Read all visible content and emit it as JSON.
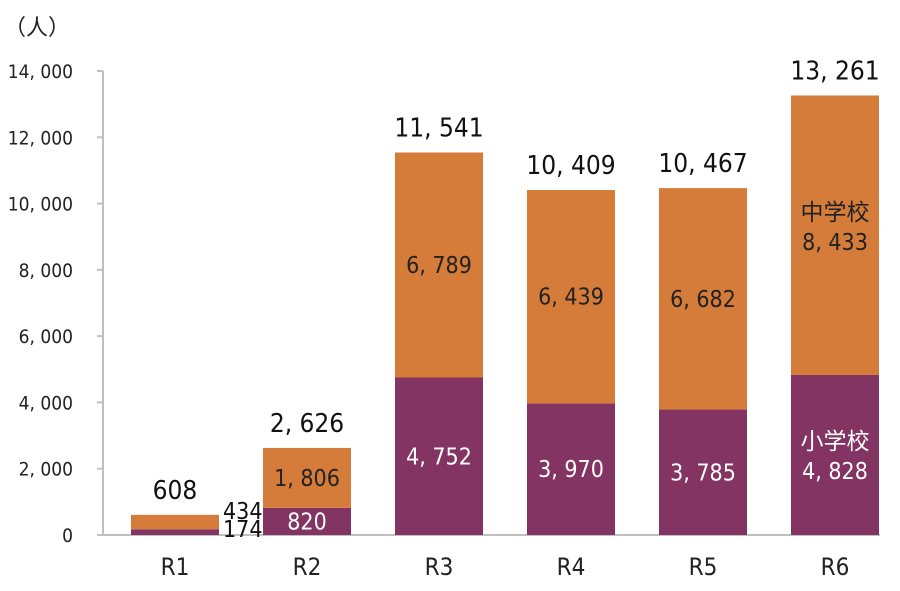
{
  "chart_data": {
    "type": "stacked-bar",
    "unit_label": "（人）",
    "categories": [
      "R1",
      "R2",
      "R3",
      "R4",
      "R5",
      "R6"
    ],
    "series": [
      {
        "name": "小学校",
        "color": "#833462",
        "values": [
          174,
          820,
          4752,
          3970,
          3785,
          4828
        ],
        "labels": [
          "174",
          "820",
          "4, 752",
          "3, 970",
          "3, 785",
          "4, 828"
        ]
      },
      {
        "name": "中学校",
        "color": "#d57c3a",
        "values": [
          434,
          1806,
          6789,
          6439,
          6682,
          8433
        ],
        "labels": [
          "434",
          "1, 806",
          "6, 789",
          "6, 439",
          "6, 682",
          "8, 433"
        ]
      }
    ],
    "totals": [
      608,
      2626,
      11541,
      10409,
      10467,
      13261
    ],
    "total_labels": [
      "608",
      "2, 626",
      "11, 541",
      "10, 409",
      "10, 467",
      "13, 261"
    ],
    "series_labels_in_last_bar": [
      "小学校",
      "中学校"
    ],
    "y_ticks": [
      0,
      2000,
      4000,
      6000,
      8000,
      10000,
      12000,
      14000
    ],
    "y_tick_labels": [
      "0",
      "2, 000",
      "4, 000",
      "6, 000",
      "8, 000",
      "10, 000",
      "12, 000",
      "14, 000"
    ],
    "ylim": [
      0,
      14000
    ],
    "grid": false,
    "legend": "none"
  }
}
